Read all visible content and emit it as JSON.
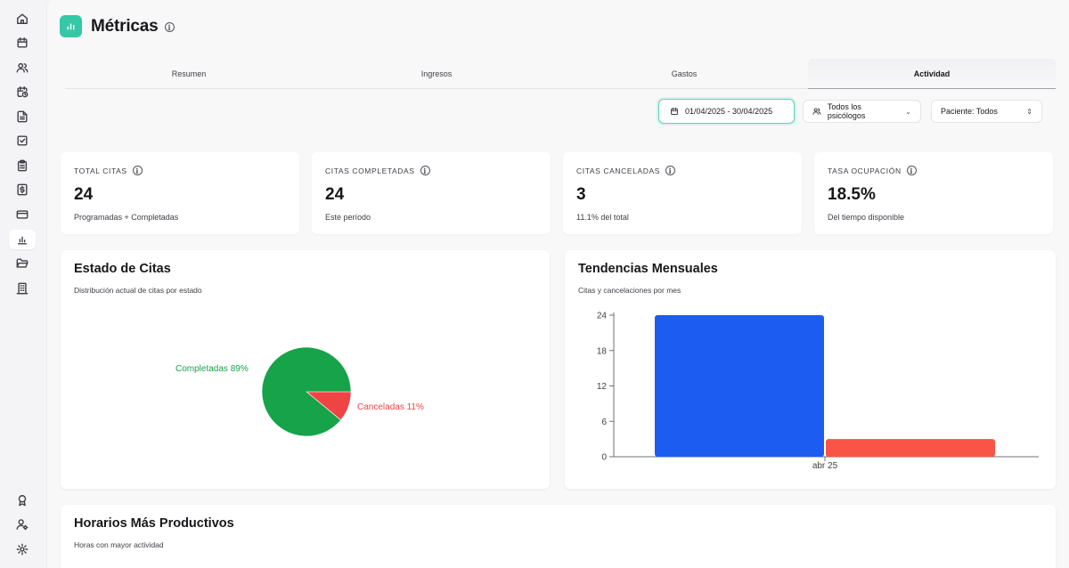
{
  "page": {
    "title": "Métricas"
  },
  "tabs": [
    {
      "label": "Resumen"
    },
    {
      "label": "Ingresos"
    },
    {
      "label": "Gastos"
    },
    {
      "label": "Actividad"
    }
  ],
  "filters": {
    "date_range": "01/04/2025 - 30/04/2025",
    "psychologists": "Todos los psicólogos",
    "patient": "Paciente: Todos"
  },
  "stats": [
    {
      "label": "TOTAL CITAS",
      "value": "24",
      "sub": "Programadas + Completadas"
    },
    {
      "label": "CITAS COMPLETADAS",
      "value": "24",
      "sub": "Este período"
    },
    {
      "label": "CITAS CANCELADAS",
      "value": "3",
      "sub": "11.1% del total"
    },
    {
      "label": "TASA OCUPACIÓN",
      "value": "18.5%",
      "sub": "Del tiempo disponible"
    }
  ],
  "status_panel": {
    "title": "Estado de Citas",
    "subtitle": "Distribución actual de citas por estado",
    "label_completed": "Completadas 89%",
    "label_cancelled": "Canceladas 11%"
  },
  "trend_panel": {
    "title": "Tendencias Mensuales",
    "subtitle": "Citas y cancelaciones por mes"
  },
  "hours_panel": {
    "title": "Horarios Más Productivos",
    "subtitle": "Horas con mayor actividad"
  },
  "colors": {
    "accent": "#34c9a6",
    "completed": "#16a34a",
    "cancelled": "#ef4444",
    "bar_blue": "#1d5cf0",
    "bar_red": "#fa5447"
  },
  "sidebar_icons": [
    "home-icon",
    "calendar-icon",
    "users-icon",
    "calendar-clock-icon",
    "document-icon",
    "checklist-icon",
    "clipboard-icon",
    "dollar-icon",
    "credit-card-icon",
    "bar-chart-icon",
    "folder-icon",
    "building-icon",
    "award-icon",
    "user-settings-icon",
    "gear-icon"
  ],
  "chart_data": [
    {
      "type": "pie",
      "labels": [
        "Completadas",
        "Canceladas"
      ],
      "values": [
        89,
        11
      ],
      "colors": [
        "#16a34a",
        "#ef4444"
      ]
    },
    {
      "type": "bar",
      "categories": [
        "abr 25"
      ],
      "series": [
        {
          "values": [
            24
          ],
          "color": "#1d5cf0"
        },
        {
          "values": [
            3
          ],
          "color": "#fa5447"
        }
      ],
      "yticks": [
        0,
        6,
        12,
        18,
        24
      ],
      "ylim": [
        0,
        24
      ]
    }
  ]
}
